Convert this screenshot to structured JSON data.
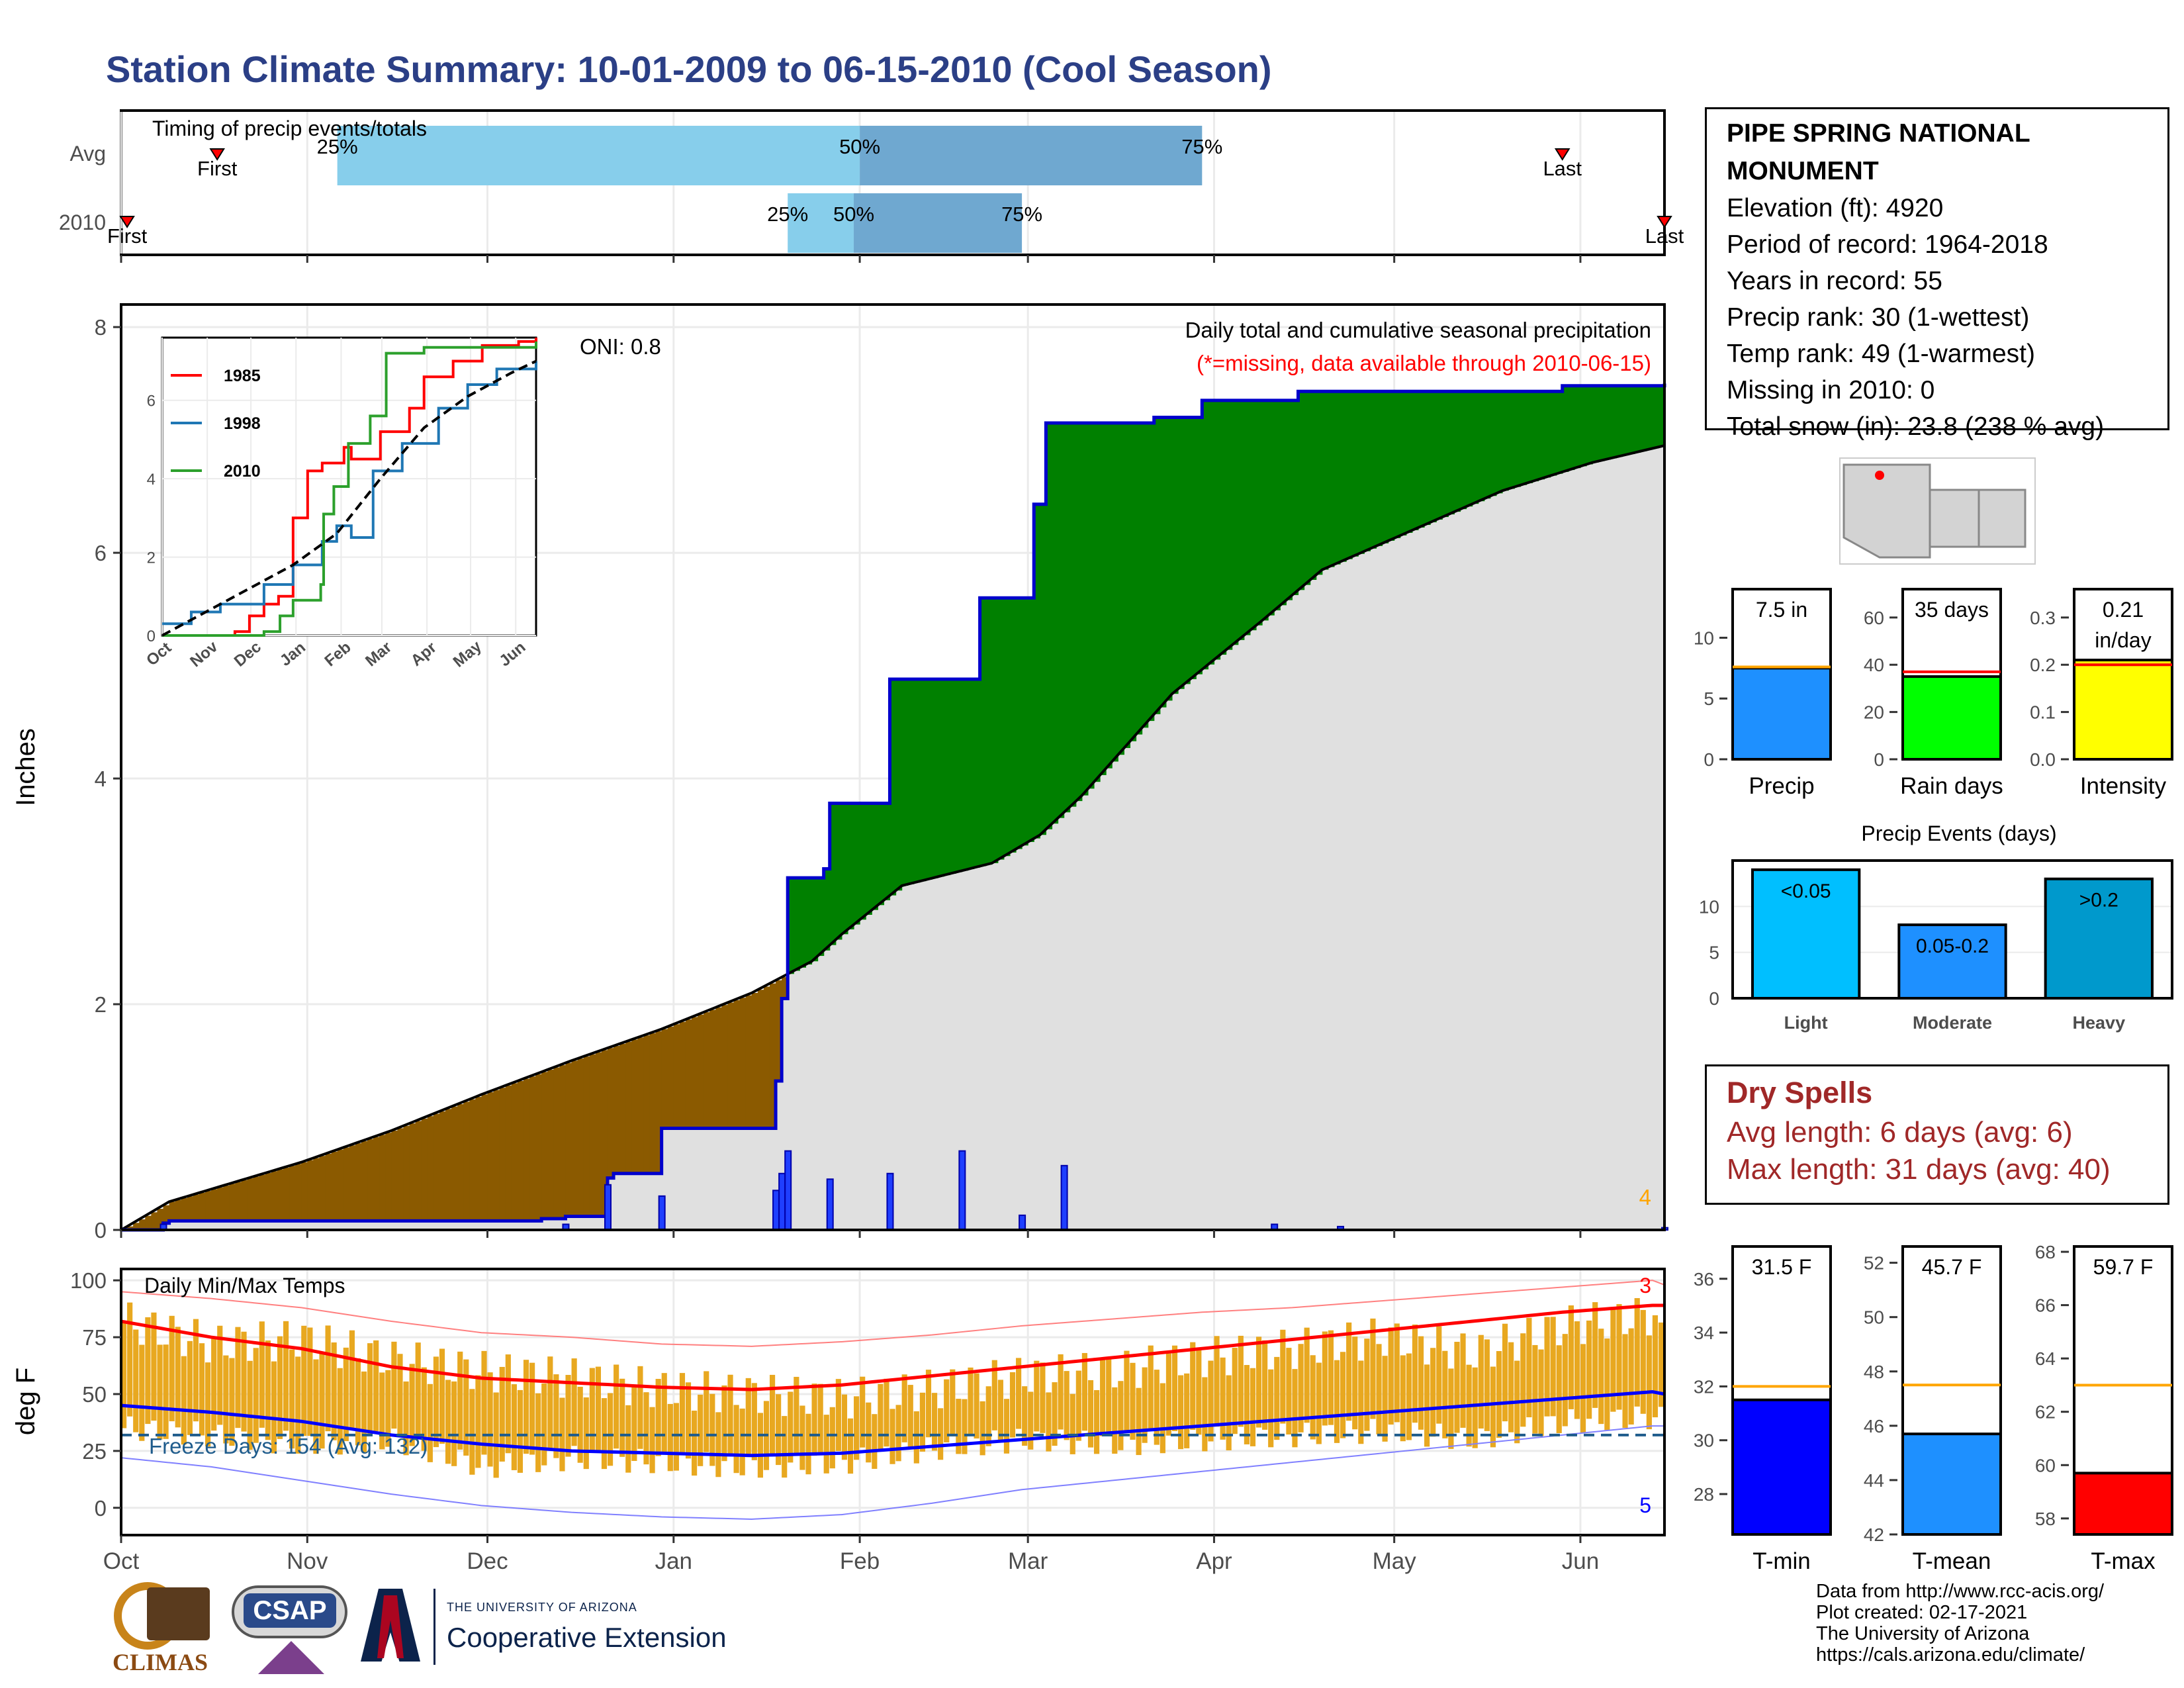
{
  "title": "Station Climate Summary: 10-01-2009 to 06-15-2010 (Cool Season)",
  "colors": {
    "title": "#2b3f86",
    "cum_avg_fill": "#e0e0e0",
    "surplus": "#008000",
    "deficit": "#8b5a00",
    "cum_line": "#0000cc",
    "daily_bar": "#1f3fff",
    "oni_text": "#000000",
    "max_line": "#ff0000",
    "min_line": "#0000ff",
    "range_bar": "#e8a820",
    "freeze_line": "#1f5c8c",
    "q25_50": "#87ceeb",
    "q50_75": "#6fa8d0",
    "precip_bar": "#1e90ff",
    "raindays_bar": "#00ff00",
    "intensity_bar": "#ffff00",
    "light": "#00bfff",
    "moderate": "#1e90ff",
    "heavy": "#0099cc",
    "tmin_bar": "#0000ff",
    "tmean_bar": "#1e90ff",
    "tmax_bar": "#ff0000",
    "avg_temp_line": "#ffa500"
  },
  "months": [
    "Oct",
    "Nov",
    "Dec",
    "Jan",
    "Feb",
    "Mar",
    "Apr",
    "May",
    "Jun"
  ],
  "timing": {
    "label": "Timing of precip events/totals",
    "rows": [
      {
        "label": "Avg",
        "first_day": 16,
        "last_day": 240,
        "q25_day": 36,
        "q50_day": 123,
        "q75_day": 180
      },
      {
        "label": "2010",
        "first_day": 1,
        "last_day": 257,
        "q25_day": 111,
        "q50_day": 122,
        "q75_day": 150
      }
    ],
    "first_text": "First",
    "last_text": "Last",
    "q25_text": "25%",
    "q50_text": "50%",
    "q75_text": "75%"
  },
  "chart_data": [
    {
      "type": "area",
      "title": "Daily total and cumulative seasonal precipitation",
      "subtitle": "(*=missing, data available through 2010-06-15)",
      "ylabel": "Inches",
      "ylim": [
        0,
        8.2
      ],
      "yticks": [
        0,
        2,
        4,
        6,
        8
      ],
      "oni": "ONI: 0.8",
      "corner_value": "4",
      "x_days": [
        0,
        8,
        30,
        45,
        60,
        75,
        90,
        105,
        115,
        120,
        130,
        145,
        153,
        160,
        175,
        190,
        200,
        215,
        230,
        245,
        257
      ],
      "avg_cumulative": [
        0.0,
        0.25,
        0.6,
        0.88,
        1.2,
        1.5,
        1.78,
        2.1,
        2.38,
        2.62,
        3.05,
        3.25,
        3.5,
        3.85,
        4.75,
        5.4,
        5.85,
        6.2,
        6.55,
        6.8,
        6.95
      ],
      "cumulative_2010": [
        [
          0,
          0.0
        ],
        [
          7,
          0.06
        ],
        [
          8,
          0.08
        ],
        [
          70,
          0.1
        ],
        [
          74,
          0.12
        ],
        [
          81,
          0.46
        ],
        [
          82,
          0.5
        ],
        [
          90,
          0.9
        ],
        [
          109,
          1.32
        ],
        [
          110,
          2.05
        ],
        [
          111,
          3.12
        ],
        [
          117,
          3.2
        ],
        [
          118,
          3.78
        ],
        [
          128,
          4.88
        ],
        [
          143,
          5.6
        ],
        [
          152,
          6.43
        ],
        [
          154,
          7.15
        ],
        [
          172,
          7.2
        ],
        [
          180,
          7.35
        ],
        [
          196,
          7.43
        ],
        [
          240,
          7.48
        ],
        [
          257,
          7.5
        ]
      ],
      "daily": [
        [
          7,
          0.05
        ],
        [
          74,
          0.05
        ],
        [
          81,
          0.4
        ],
        [
          90,
          0.3
        ],
        [
          109,
          0.35
        ],
        [
          110,
          0.5
        ],
        [
          111,
          0.7
        ],
        [
          118,
          0.45
        ],
        [
          128,
          0.5
        ],
        [
          140,
          0.7
        ],
        [
          150,
          0.13
        ],
        [
          157,
          0.57
        ],
        [
          192,
          0.05
        ],
        [
          203,
          0.03
        ],
        [
          257,
          0.02
        ]
      ],
      "inset": {
        "type": "line",
        "xticks": [
          "Oct",
          "Nov",
          "Dec",
          "Jan",
          "Feb",
          "Mar",
          "Apr",
          "May",
          "Jun"
        ],
        "yticks": [
          0,
          2,
          4,
          6
        ],
        "ylim": [
          0,
          7.6
        ],
        "series": [
          {
            "name": "1985",
            "color": "#ff0000",
            "points": [
              [
                0,
                0
              ],
              [
                50,
                0.1
              ],
              [
                60,
                0.5
              ],
              [
                70,
                0.8
              ],
              [
                80,
                1.0
              ],
              [
                90,
                3.0
              ],
              [
                100,
                4.2
              ],
              [
                110,
                4.4
              ],
              [
                125,
                4.8
              ],
              [
                130,
                4.5
              ],
              [
                150,
                5.2
              ],
              [
                170,
                5.8
              ],
              [
                180,
                6.6
              ],
              [
                200,
                7.0
              ],
              [
                220,
                7.4
              ],
              [
                245,
                7.5
              ],
              [
                257,
                7.6
              ]
            ]
          },
          {
            "name": "1998",
            "color": "#1f77b4",
            "points": [
              [
                0,
                0.3
              ],
              [
                20,
                0.6
              ],
              [
                40,
                0.8
              ],
              [
                70,
                1.3
              ],
              [
                90,
                1.8
              ],
              [
                110,
                2.4
              ],
              [
                120,
                2.8
              ],
              [
                130,
                2.5
              ],
              [
                145,
                4.2
              ],
              [
                165,
                4.9
              ],
              [
                190,
                5.8
              ],
              [
                210,
                6.4
              ],
              [
                230,
                6.8
              ],
              [
                257,
                7.0
              ]
            ]
          },
          {
            "name": "2010",
            "color": "#2ca02c",
            "points": [
              [
                0,
                0
              ],
              [
                70,
                0.1
              ],
              [
                81,
                0.5
              ],
              [
                90,
                0.9
              ],
              [
                109,
                1.3
              ],
              [
                111,
                3.1
              ],
              [
                118,
                3.8
              ],
              [
                128,
                4.9
              ],
              [
                143,
                5.6
              ],
              [
                154,
                7.2
              ],
              [
                180,
                7.35
              ],
              [
                257,
                7.5
              ]
            ]
          },
          {
            "name": "",
            "color": "#000000",
            "dashed": true,
            "points": [
              [
                0,
                0
              ],
              [
                30,
                0.6
              ],
              [
                60,
                1.2
              ],
              [
                90,
                1.8
              ],
              [
                120,
                2.6
              ],
              [
                150,
                4.0
              ],
              [
                180,
                5.3
              ],
              [
                210,
                6.1
              ],
              [
                240,
                6.7
              ],
              [
                257,
                7.0
              ]
            ]
          }
        ]
      }
    },
    {
      "type": "bar",
      "title": "Daily Min/Max Temps",
      "ylabel": "deg F",
      "ylim": [
        -12,
        105
      ],
      "yticks": [
        0,
        25,
        50,
        75,
        100
      ],
      "freeze_label": "Freeze Days: 154 (Avg: 132)",
      "freeze_value": 32,
      "max_count": "3",
      "min_count": "5",
      "x_days": [
        0,
        15,
        30,
        45,
        60,
        75,
        90,
        105,
        120,
        135,
        150,
        165,
        180,
        195,
        210,
        225,
        240,
        255,
        257
      ],
      "tmax": [
        82,
        72,
        74,
        65,
        60,
        57,
        52,
        50,
        48,
        52,
        58,
        60,
        66,
        70,
        75,
        68,
        80,
        85,
        60
      ],
      "tmin": [
        35,
        32,
        28,
        30,
        18,
        22,
        20,
        18,
        20,
        26,
        30,
        28,
        30,
        32,
        34,
        30,
        38,
        40,
        38
      ],
      "avg_max": [
        82,
        75,
        70,
        62,
        57,
        55,
        53,
        52,
        54,
        58,
        62,
        66,
        70,
        74,
        78,
        82,
        86,
        89,
        89
      ],
      "avg_min": [
        45,
        42,
        38,
        32,
        28,
        25,
        24,
        23,
        24,
        27,
        30,
        33,
        36,
        39,
        42,
        45,
        48,
        51,
        50
      ],
      "record_max": [
        95,
        92,
        88,
        82,
        77,
        75,
        72,
        71,
        73,
        76,
        80,
        83,
        86,
        88,
        91,
        94,
        97,
        100,
        98
      ],
      "record_min": [
        22,
        18,
        12,
        6,
        1,
        -2,
        -4,
        -5,
        -3,
        2,
        8,
        12,
        16,
        20,
        24,
        28,
        32,
        36,
        36
      ]
    },
    {
      "type": "bar",
      "name": "Precip",
      "categories": [
        "Precip"
      ],
      "values": [
        7.5
      ],
      "avg": 7.6,
      "ylim": [
        0,
        14
      ],
      "yticks": [
        0,
        5,
        10
      ],
      "label": "7.5 in"
    },
    {
      "type": "bar",
      "name": "Rain days",
      "categories": [
        "Rain days"
      ],
      "values": [
        35
      ],
      "avg": 37,
      "ylim": [
        0,
        72
      ],
      "yticks": [
        0,
        20,
        40,
        60
      ],
      "label": "35 days"
    },
    {
      "type": "bar",
      "name": "Intensity",
      "categories": [
        "Intensity"
      ],
      "values": [
        0.21
      ],
      "avg": 0.2,
      "ylim": [
        0,
        0.36
      ],
      "yticks": [
        "0.0",
        "0.1",
        "0.2",
        "0.3"
      ],
      "label": "0.21 in/day"
    },
    {
      "type": "bar",
      "title": "Precip Events (days)",
      "categories": [
        "Light",
        "Moderate",
        "Heavy"
      ],
      "values": [
        14,
        8,
        13
      ],
      "labels": [
        "<0.05",
        "0.05-0.2",
        ">0.2"
      ],
      "ylim": [
        0,
        15
      ],
      "yticks": [
        0,
        5,
        10
      ]
    },
    {
      "type": "bar",
      "name": "T-min",
      "categories": [
        "T-min"
      ],
      "values": [
        31.5
      ],
      "avg": 32.0,
      "ylim": [
        26.5,
        37.2
      ],
      "yticks": [
        28,
        30,
        32,
        34,
        36
      ],
      "label": "31.5 F"
    },
    {
      "type": "bar",
      "name": "T-mean",
      "categories": [
        "T-mean"
      ],
      "values": [
        45.7
      ],
      "avg": 47.5,
      "ylim": [
        42,
        52.6
      ],
      "yticks": [
        42,
        44,
        46,
        48,
        50,
        52
      ],
      "label": "45.7 F"
    },
    {
      "type": "bar",
      "name": "T-max",
      "categories": [
        "T-max"
      ],
      "values": [
        59.7
      ],
      "avg": 63.0,
      "ylim": [
        57.4,
        68.2
      ],
      "yticks": [
        58,
        60,
        62,
        64,
        66,
        68
      ],
      "label": "59.7 F"
    }
  ],
  "station": {
    "name": "PIPE SPRING NATIONAL MONUMENT",
    "elevation": "Elevation (ft): 4920",
    "period": "Period of record: 1964-2018",
    "years": "Years in record: 55",
    "precip_rank": "Precip rank: 30 (1-wettest)",
    "temp_rank": "Temp rank: 49 (1-warmest)",
    "missing": "Missing in 2010: 0",
    "snow": "Total snow (in): 23.8 (238 % avg)"
  },
  "dry_spells": {
    "title": "Dry Spells",
    "avg": "Avg length: 6 days (avg: 6)",
    "max": "Max length: 31 days (avg: 40)"
  },
  "logos": {
    "climas": "CLIMAS",
    "csap": "CSAP",
    "uofa_small": "THE UNIVERSITY OF ARIZONA",
    "uofa_big": "Cooperative Extension"
  },
  "credits": [
    "Data from http://www.rcc-acis.org/",
    "Plot created: 02-17-2021",
    "The University of Arizona",
    "https://cals.arizona.edu/climate/"
  ]
}
